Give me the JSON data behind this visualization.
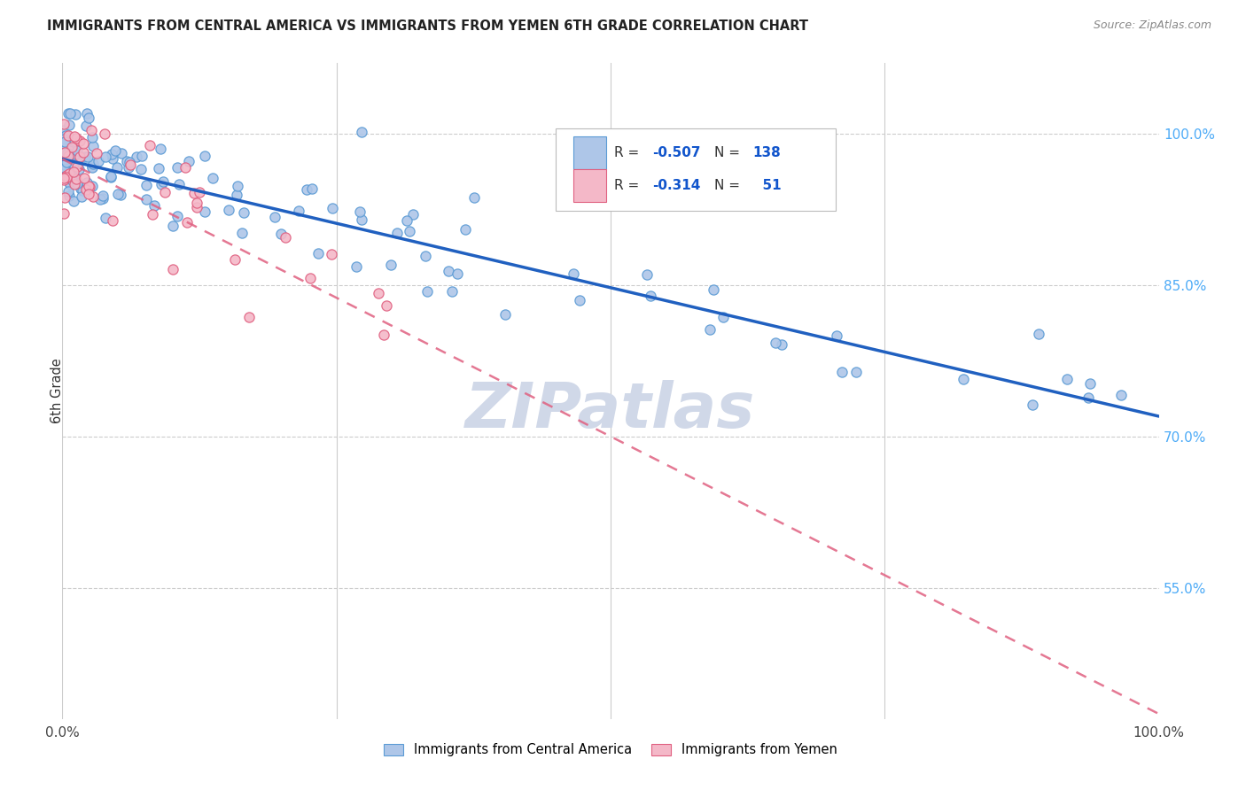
{
  "title": "IMMIGRANTS FROM CENTRAL AMERICA VS IMMIGRANTS FROM YEMEN 6TH GRADE CORRELATION CHART",
  "source": "Source: ZipAtlas.com",
  "ylabel": "6th Grade",
  "ytick_values": [
    1.0,
    0.85,
    0.7,
    0.55
  ],
  "ytick_labels": [
    "100.0%",
    "85.0%",
    "70.0%",
    "55.0%"
  ],
  "legend_blue_label": "Immigrants from Central America",
  "legend_pink_label": "Immigrants from Yemen",
  "blue_color": "#aec6e8",
  "blue_edge_color": "#5b9bd5",
  "pink_color": "#f4b8c8",
  "pink_edge_color": "#e06080",
  "blue_line_color": "#2060c0",
  "pink_line_color": "#e06080",
  "grid_color": "#cccccc",
  "watermark": "ZIPatlas",
  "watermark_color": "#d0d8e8",
  "right_axis_color": "#4dabf7",
  "title_color": "#222222",
  "source_color": "#888888",
  "blue_line_y0": 0.975,
  "blue_line_y1": 0.72,
  "pink_line_y0": 0.975,
  "pink_line_slope": -0.55,
  "xlim": [
    0.0,
    1.0
  ],
  "ylim": [
    0.42,
    1.07
  ]
}
